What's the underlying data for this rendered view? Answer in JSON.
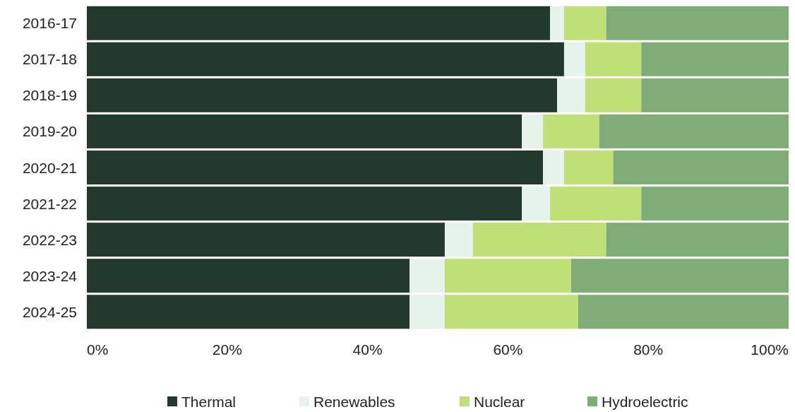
{
  "chart_data": {
    "type": "bar",
    "orientation": "horizontal",
    "stacked": true,
    "categories": [
      "2016-17",
      "2017-18",
      "2018-19",
      "2019-20",
      "2020-21",
      "2021-22",
      "2022-23",
      "2023-24",
      "2024-25"
    ],
    "series": [
      {
        "name": "Thermal",
        "color": "#23392d",
        "values": [
          66,
          68,
          67,
          62,
          65,
          62,
          51,
          46,
          46
        ]
      },
      {
        "name": "Renewables",
        "color": "#e6f2ec",
        "values": [
          2,
          3,
          4,
          3,
          3,
          4,
          4,
          5,
          5
        ]
      },
      {
        "name": "Nuclear",
        "color": "#bfe077",
        "values": [
          6,
          8,
          8,
          8,
          7,
          13,
          19,
          18,
          19
        ]
      },
      {
        "name": "Hydroelectric",
        "color": "#80ad76",
        "values": [
          26,
          21,
          21,
          27,
          25,
          21,
          26,
          31,
          30
        ]
      }
    ],
    "xlim": [
      0,
      100
    ],
    "xticks": [
      {
        "value": 0,
        "label": "0%"
      },
      {
        "value": 20,
        "label": "20%"
      },
      {
        "value": 40,
        "label": "40%"
      },
      {
        "value": 60,
        "label": "60%"
      },
      {
        "value": 80,
        "label": "80%"
      },
      {
        "value": 100,
        "label": "100%"
      }
    ],
    "legend": "bottom"
  }
}
